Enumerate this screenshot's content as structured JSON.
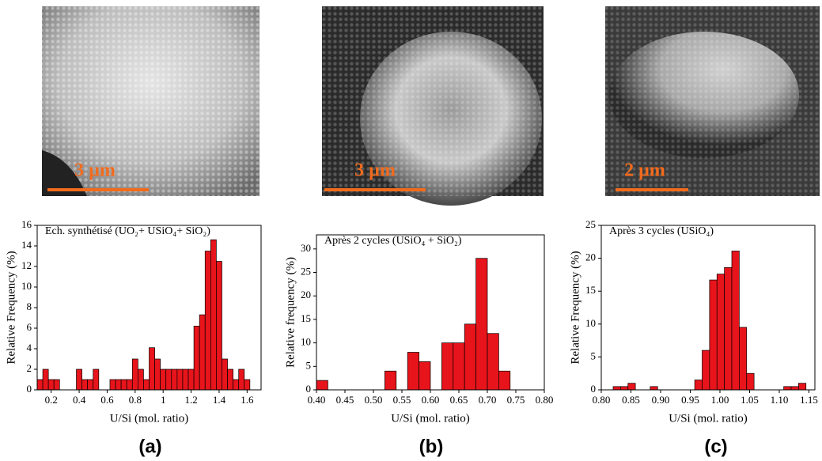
{
  "chart_data": [
    {
      "type": "histogram",
      "panel_label": "(a)",
      "scale_label": "3 µm",
      "title": "Ech. synthétisé (UO₂+ USiO₄+ SiO₂)",
      "x_label": "U/Si (mol. ratio)",
      "y_label": "Relative Frequency (%)",
      "color": "#e8141b",
      "bins": [
        0.1,
        0.14,
        0.18,
        0.22,
        0.26,
        0.3,
        0.34,
        0.38,
        0.42,
        0.46,
        0.5,
        0.54,
        0.58,
        0.62,
        0.66,
        0.7,
        0.74,
        0.78,
        0.82,
        0.86,
        0.9,
        0.94,
        0.98,
        1.02,
        1.06,
        1.1,
        1.14,
        1.18,
        1.22,
        1.26,
        1.3,
        1.34,
        1.38,
        1.42,
        1.46,
        1.5,
        1.54,
        1.58,
        1.62,
        1.66,
        1.7
      ],
      "values": [
        1,
        2,
        1,
        1,
        0,
        0,
        0,
        2,
        1,
        1,
        2,
        0,
        0,
        1,
        1,
        1,
        1,
        3,
        2,
        1,
        4.1,
        3,
        2,
        2,
        2,
        2,
        2,
        2,
        6.2,
        7.3,
        13.5,
        14.6,
        12.5,
        3,
        2,
        1,
        2,
        1,
        0,
        0
      ],
      "xlim": [
        0.1,
        1.7
      ],
      "xticks": [
        0.2,
        0.4,
        0.6,
        0.8,
        1,
        1.2,
        1.4,
        1.6
      ],
      "ylim": [
        0,
        16
      ],
      "yticks": [
        0,
        2,
        4,
        6,
        8,
        10,
        12,
        14,
        16
      ]
    },
    {
      "type": "histogram",
      "panel_label": "(b)",
      "scale_label": "3 µm",
      "title": "Après 2 cycles (USiO₄ + SiO₂)",
      "x_label": "U/Si (mol. ratio)",
      "y_label": "Relative frequency (%)",
      "color": "#e8141b",
      "bins": [
        0.4,
        0.42,
        0.44,
        0.46,
        0.48,
        0.5,
        0.52,
        0.54,
        0.56,
        0.58,
        0.6,
        0.62,
        0.64,
        0.66,
        0.68,
        0.7,
        0.72,
        0.74
      ],
      "values": [
        2,
        0,
        0,
        0,
        0,
        0,
        4,
        0,
        8,
        6,
        0,
        10,
        10,
        14,
        28,
        12,
        4
      ],
      "xlim": [
        0.4,
        0.8
      ],
      "xticks": [
        {
          "value": 0.4,
          "label": "0.40"
        },
        {
          "value": 0.45,
          "label": "0.45"
        },
        {
          "value": 0.5,
          "label": "0.50"
        },
        {
          "value": 0.55,
          "label": "0.55"
        },
        {
          "value": 0.6,
          "label": "0.60"
        },
        {
          "value": 0.65,
          "label": "0.65"
        },
        {
          "value": 0.7,
          "label": "0.70"
        },
        {
          "value": 0.75,
          "label": "0.75"
        },
        {
          "value": 0.8,
          "label": "0.80"
        }
      ],
      "ylim": [
        0,
        33
      ],
      "yticks": [
        0,
        5,
        10,
        15,
        20,
        25,
        30
      ]
    },
    {
      "type": "histogram",
      "panel_label": "(c)",
      "scale_label": "2 µm",
      "title": "Après 3 cycles (USiO₄)",
      "x_label": "U/Si (mol. ratio)",
      "y_label": "Relative Frequency (%)",
      "color": "#e8141b",
      "bins": [
        0.82,
        0.8325,
        0.845,
        0.8575,
        0.87,
        0.8825,
        0.895,
        0.9075,
        0.92,
        0.9325,
        0.945,
        0.9575,
        0.97,
        0.9825,
        0.995,
        1.0075,
        1.02,
        1.0325,
        1.045,
        1.0575,
        1.07,
        1.0825,
        1.095,
        1.1075,
        1.12,
        1.1325,
        1.145
      ],
      "values": [
        0.5,
        0.5,
        1,
        0,
        0,
        0.5,
        0,
        0,
        0,
        0,
        0,
        1.5,
        6,
        16.7,
        17.6,
        18.6,
        21.1,
        9.5,
        2.5,
        0,
        0,
        0,
        0,
        0.5,
        0.5,
        1
      ],
      "xlim": [
        0.8,
        1.16
      ],
      "xticks": [
        {
          "value": 0.8,
          "label": "0.80"
        },
        {
          "value": 0.85,
          "label": "0.85"
        },
        {
          "value": 0.9,
          "label": "0.90"
        },
        {
          "value": 0.95,
          "label": "0.95"
        },
        {
          "value": 1,
          "label": "1.00"
        },
        {
          "value": 1.05,
          "label": "1.05"
        },
        {
          "value": 1.1,
          "label": "1.10"
        },
        {
          "value": 1.15,
          "label": "1.15"
        }
      ],
      "ylim": [
        0,
        25
      ],
      "yticks": [
        0,
        5,
        10,
        15,
        20,
        25
      ]
    }
  ]
}
